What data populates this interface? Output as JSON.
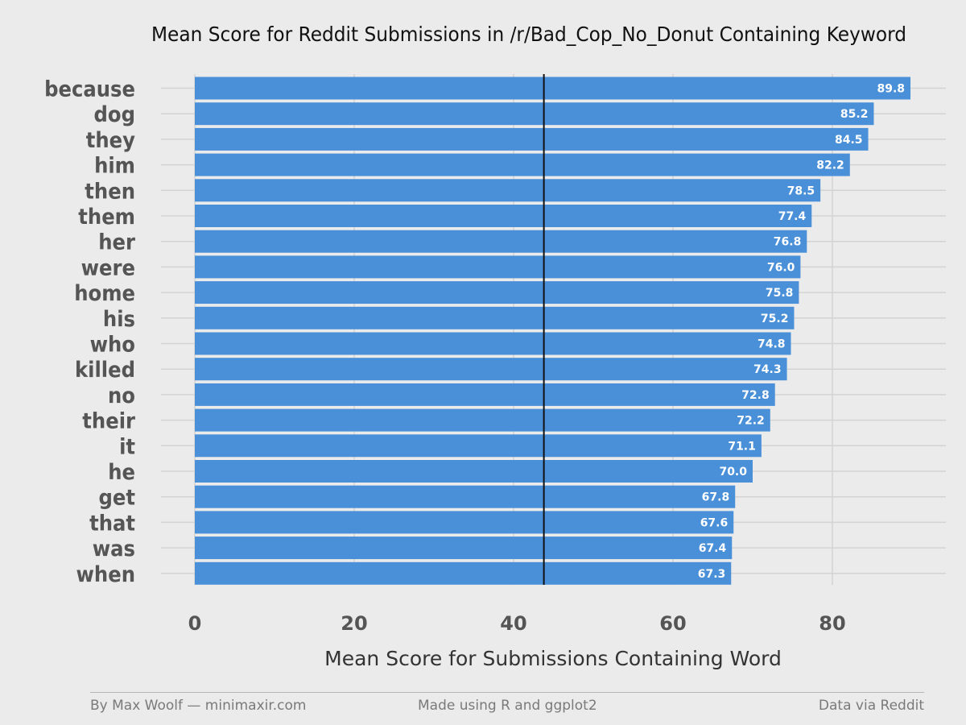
{
  "chart_data": {
    "type": "bar",
    "orientation": "horizontal",
    "title": "Mean Score for Reddit Submissions in /r/Bad_Cop_No_Donut Containing Keyword",
    "xlabel": "Mean Score for Submissions Containing Word",
    "ylabel": "",
    "categories": [
      "because",
      "dog",
      "they",
      "him",
      "then",
      "them",
      "her",
      "were",
      "home",
      "his",
      "who",
      "killed",
      "no",
      "their",
      "it",
      "he",
      "get",
      "that",
      "was",
      "when"
    ],
    "values": [
      89.8,
      85.2,
      84.5,
      82.2,
      78.5,
      77.4,
      76.8,
      76.0,
      75.8,
      75.2,
      74.8,
      74.3,
      72.8,
      72.2,
      71.1,
      70.0,
      67.8,
      67.6,
      67.4,
      67.3
    ],
    "value_labels": [
      "89.8",
      "85.2",
      "84.5",
      "82.2",
      "78.5",
      "77.4",
      "76.8",
      "76.0",
      "75.8",
      "75.2",
      "74.8",
      "74.3",
      "72.8",
      "72.2",
      "71.1",
      "70.0",
      "67.8",
      "67.6",
      "67.4",
      "67.3"
    ],
    "xlim": [
      0,
      90
    ],
    "xticks": [
      0,
      20,
      40,
      60,
      80
    ],
    "xtick_labels": [
      "0",
      "20",
      "40",
      "60",
      "80"
    ],
    "reference_line": 43.8,
    "grid": true,
    "bar_color": "#4a90d9",
    "background_color": "#ebebeb",
    "grid_color": "#d3d3d3"
  },
  "footer": {
    "left": "By Max Woolf — minimaxir.com",
    "center": "Made using R and ggplot2",
    "right": "Data via Reddit"
  }
}
